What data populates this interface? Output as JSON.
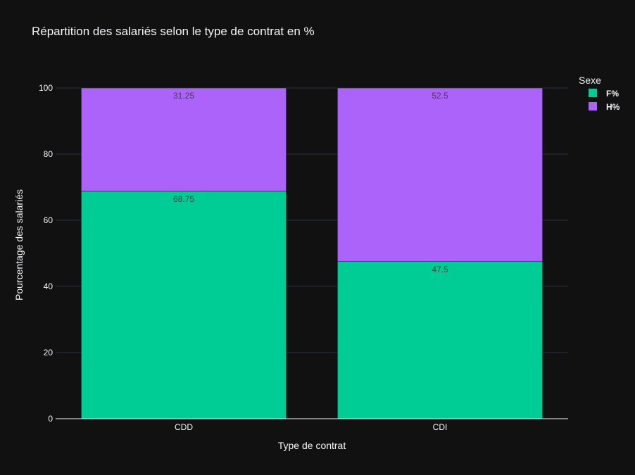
{
  "chart_data": {
    "type": "bar",
    "barmode": "stack",
    "title": "Répartition des salariés selon le type de contrat en %",
    "xlabel": "Type de contrat",
    "ylabel": "Pourcentage des salariés",
    "categories": [
      "CDD",
      "CDI"
    ],
    "ylim": [
      0,
      100
    ],
    "yticks": [
      0,
      20,
      40,
      60,
      80,
      100
    ],
    "grid": true,
    "legend": {
      "title": "Sexe",
      "placement": "top-right"
    },
    "series": [
      {
        "name": "F%",
        "color": "#00cc96",
        "values": [
          68.75,
          47.5
        ],
        "labels": [
          "68.75",
          "47.5"
        ]
      },
      {
        "name": "H%",
        "color": "#ab63fa",
        "values": [
          31.25,
          52.5
        ],
        "labels": [
          "31.25",
          "52.5"
        ]
      }
    ]
  }
}
